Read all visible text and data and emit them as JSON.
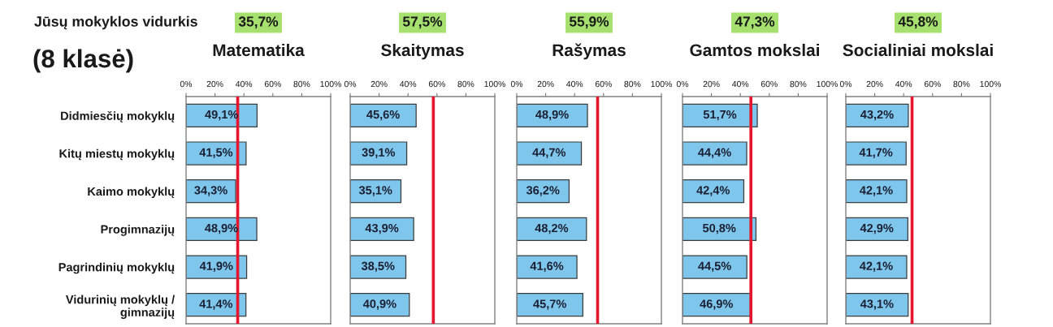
{
  "chart_data": [
    {
      "type": "bar",
      "orientation": "horizontal",
      "title": "Matematika",
      "categories": [
        "Didmiesčių mokyklų",
        "Kitų miestų mokyklų",
        "Kaimo mokyklų",
        "Progimnazijų",
        "Pagrindinių mokyklų",
        "Vidurinių mokyklų /\ngimnazijų"
      ],
      "values": [
        49.1,
        41.5,
        34.3,
        48.9,
        41.9,
        41.4
      ],
      "value_labels": [
        "49,1%",
        "41,5%",
        "34,3%",
        "48,9%",
        "41,9%",
        "41,4%"
      ],
      "color": "#7fc6ec",
      "xlim": [
        0,
        100
      ],
      "xticks": [
        {
          "value": 0,
          "label": "0%"
        },
        {
          "value": 20,
          "label": "20%"
        },
        {
          "value": 40,
          "label": "40%"
        },
        {
          "value": 60,
          "label": "60%"
        },
        {
          "value": 80,
          "label": "80%"
        },
        {
          "value": 100,
          "label": "100%"
        }
      ],
      "ref_lines": [
        {
          "axis": "x",
          "value": 35.7,
          "color": "#e5152d"
        }
      ],
      "annotations": [
        "Jūsų mokyklos vidurkis",
        "(8 klasė)",
        "35,7%"
      ]
    },
    {
      "type": "bar",
      "orientation": "horizontal",
      "title": "Skaitymas",
      "categories": [
        null,
        null,
        null,
        null,
        null,
        null
      ],
      "values": [
        45.6,
        39.1,
        35.1,
        43.9,
        38.5,
        40.9
      ],
      "value_labels": [
        "45,6%",
        "39,1%",
        "35,1%",
        "43,9%",
        "38,5%",
        "40,9%"
      ],
      "color": "#7fc6ec",
      "xlim": [
        0,
        100
      ],
      "xticks": [
        {
          "value": 0,
          "label": "0%"
        },
        {
          "value": 20,
          "label": "20%"
        },
        {
          "value": 40,
          "label": "40%"
        },
        {
          "value": 60,
          "label": "60%"
        },
        {
          "value": 80,
          "label": "80%"
        },
        {
          "value": 100,
          "label": "100%"
        }
      ],
      "ref_lines": [
        {
          "axis": "x",
          "value": 57.5,
          "color": "#e5152d"
        }
      ],
      "annotations": [
        "57,5%"
      ]
    },
    {
      "type": "bar",
      "orientation": "horizontal",
      "title": "Rašymas",
      "categories": [
        null,
        null,
        null,
        null,
        null,
        null
      ],
      "values": [
        48.9,
        44.7,
        36.2,
        48.2,
        41.6,
        45.7
      ],
      "value_labels": [
        "48,9%",
        "44,7%",
        "36,2%",
        "48,2%",
        "41,6%",
        "45,7%"
      ],
      "color": "#7fc6ec",
      "xlim": [
        0,
        100
      ],
      "xticks": [
        {
          "value": 0,
          "label": "0%"
        },
        {
          "value": 20,
          "label": "20%"
        },
        {
          "value": 40,
          "label": "40%"
        },
        {
          "value": 60,
          "label": "60%"
        },
        {
          "value": 80,
          "label": "80%"
        },
        {
          "value": 100,
          "label": "100%"
        }
      ],
      "ref_lines": [
        {
          "axis": "x",
          "value": 55.9,
          "color": "#e5152d"
        }
      ],
      "annotations": [
        "55,9%"
      ]
    },
    {
      "type": "bar",
      "orientation": "horizontal",
      "title": "Gamtos mokslai",
      "categories": [
        null,
        null,
        null,
        null,
        null,
        null
      ],
      "values": [
        51.7,
        44.4,
        42.4,
        50.8,
        44.5,
        46.9
      ],
      "value_labels": [
        "51,7%",
        "44,4%",
        "42,4%",
        "50,8%",
        "44,5%",
        "46,9%"
      ],
      "color": "#7fc6ec",
      "xlim": [
        0,
        100
      ],
      "xticks": [
        {
          "value": 0,
          "label": "0%"
        },
        {
          "value": 20,
          "label": "20%"
        },
        {
          "value": 40,
          "label": "40%"
        },
        {
          "value": 60,
          "label": "60%"
        },
        {
          "value": 80,
          "label": "80%"
        },
        {
          "value": 100,
          "label": "100%"
        }
      ],
      "ref_lines": [
        {
          "axis": "x",
          "value": 47.3,
          "color": "#e5152d"
        }
      ],
      "annotations": [
        "47,3%"
      ]
    },
    {
      "type": "bar",
      "orientation": "horizontal",
      "title": "Socialiniai mokslai",
      "categories": [
        null,
        null,
        null,
        null,
        null,
        null
      ],
      "values": [
        43.2,
        41.7,
        42.1,
        42.9,
        42.1,
        43.1
      ],
      "value_labels": [
        "43,2%",
        "41,7%",
        "42,1%",
        "42,9%",
        "42,1%",
        "43,1%"
      ],
      "color": "#7fc6ec",
      "xlim": [
        0,
        100
      ],
      "xticks": [
        {
          "value": 0,
          "label": "0%"
        },
        {
          "value": 20,
          "label": "20%"
        },
        {
          "value": 40,
          "label": "40%"
        },
        {
          "value": 60,
          "label": "60%"
        },
        {
          "value": 80,
          "label": "80%"
        },
        {
          "value": 100,
          "label": "100%"
        }
      ],
      "ref_lines": [
        {
          "axis": "x",
          "value": 45.8,
          "color": "#e5152d"
        }
      ],
      "annotations": [
        "45,8%"
      ]
    }
  ]
}
